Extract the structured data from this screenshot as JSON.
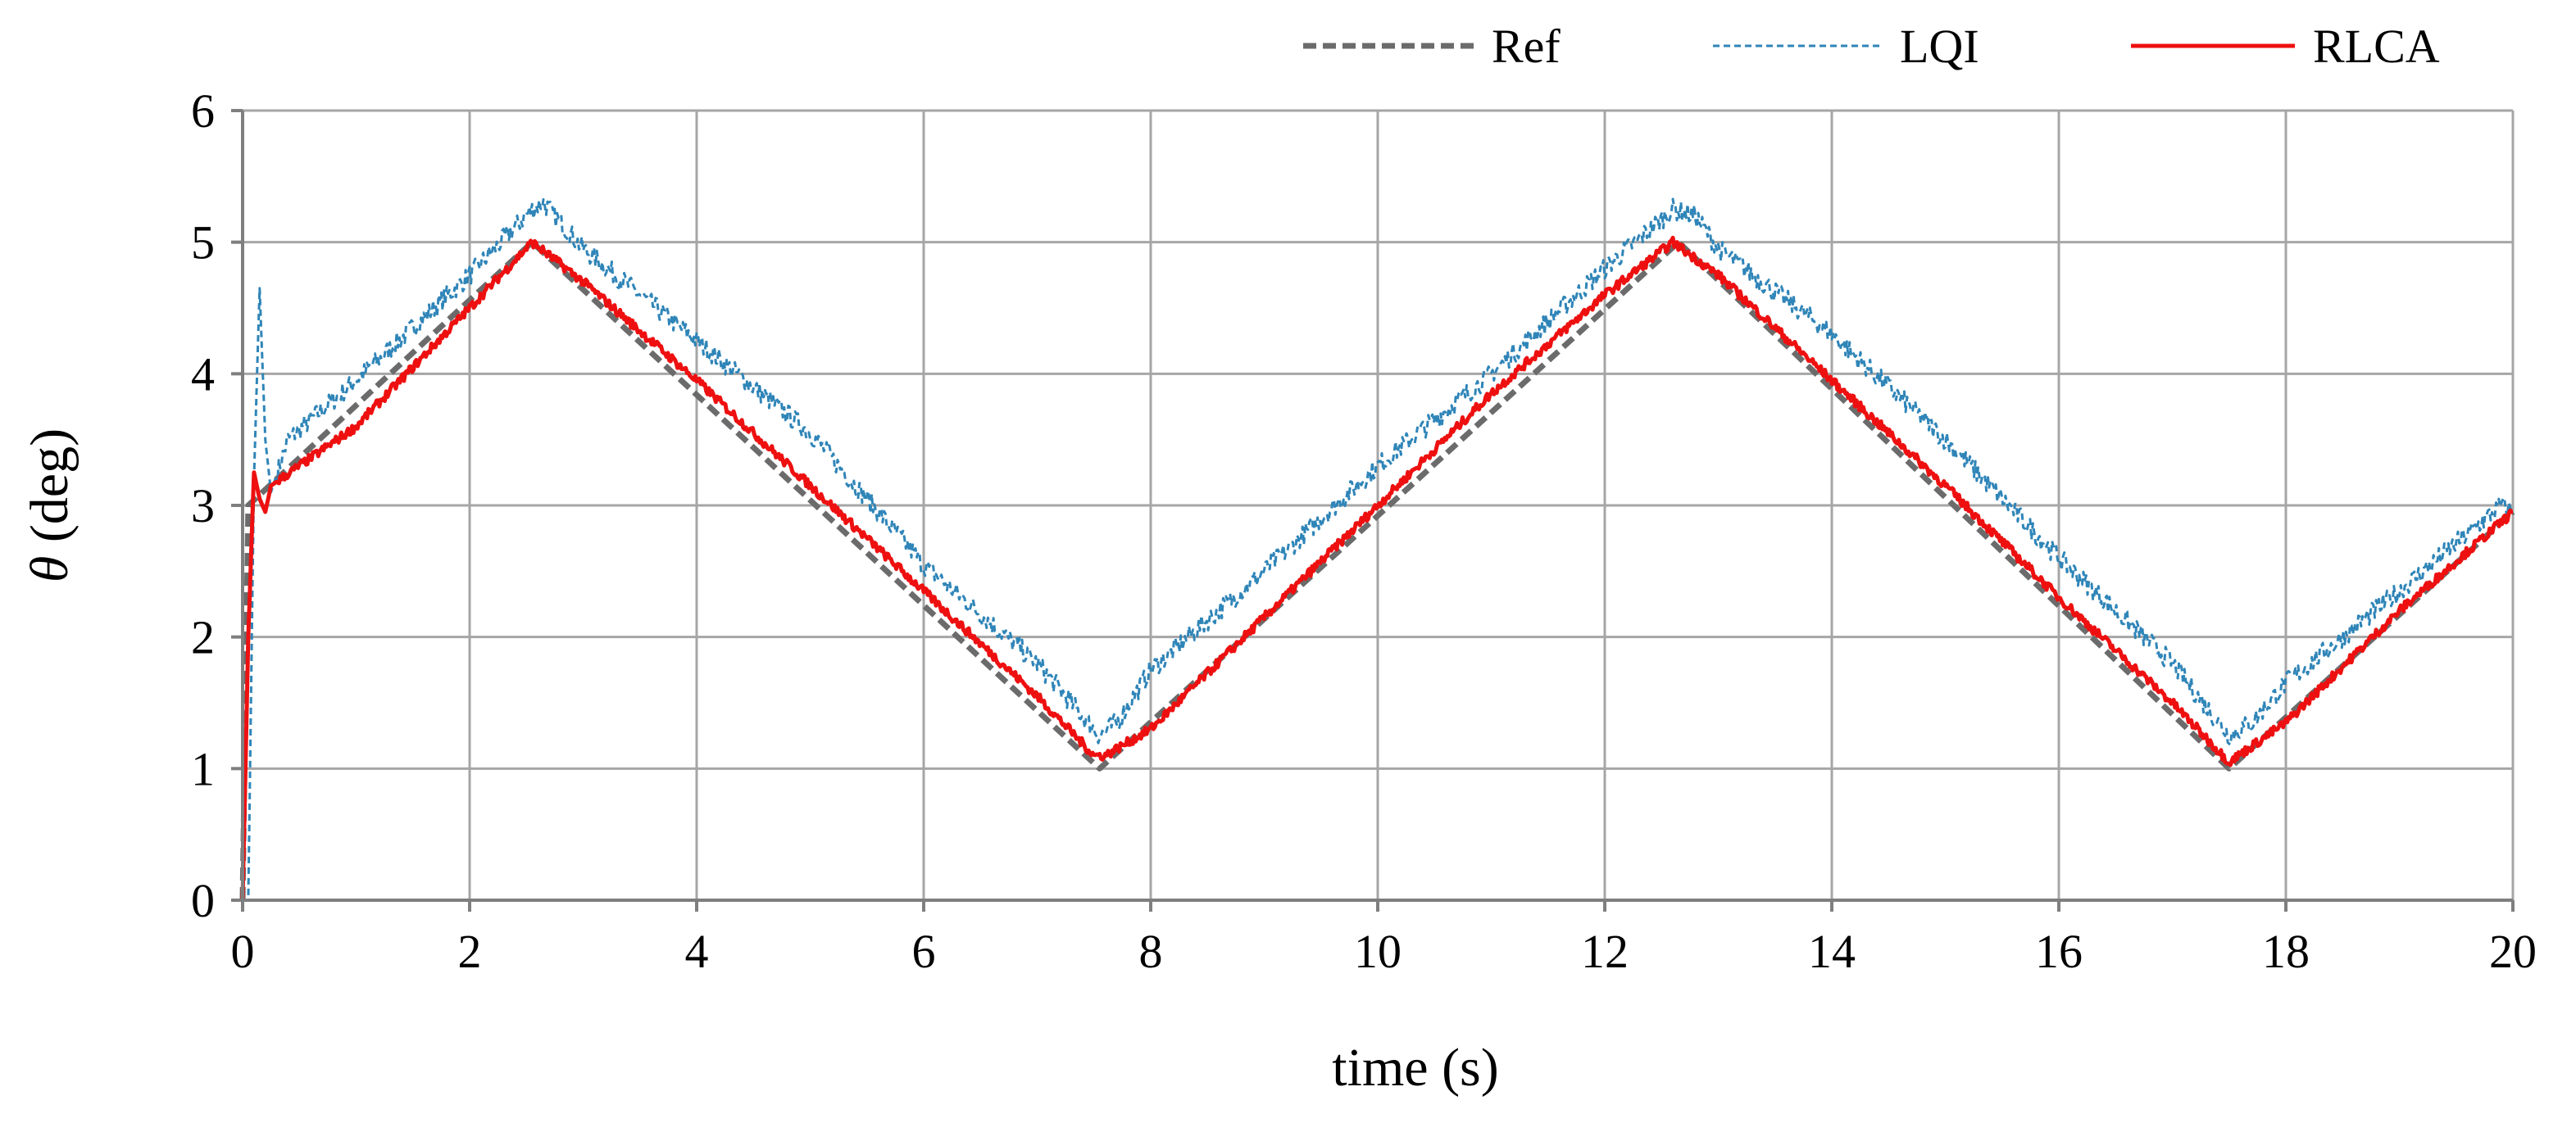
{
  "chart_data": {
    "type": "line",
    "title": "",
    "xlabel": "time (s)",
    "ylabel_symbol": "θ",
    "ylabel_unit": " (deg)",
    "xlim": [
      0,
      20
    ],
    "ylim": [
      0,
      6
    ],
    "xticks": [
      0,
      2,
      4,
      6,
      8,
      10,
      12,
      14,
      16,
      18,
      20
    ],
    "yticks": [
      0,
      1,
      2,
      3,
      4,
      5,
      6
    ],
    "grid": true,
    "legend_position": "top-right",
    "series": [
      {
        "name": "Ref",
        "color": "#6b6b6b",
        "style": "dashed",
        "x": [
          0,
          0.05,
          2.55,
          7.55,
          12.65,
          17.5,
          20
        ],
        "y": [
          0,
          3.0,
          5.0,
          1.0,
          5.0,
          1.0,
          2.95
        ]
      },
      {
        "name": "LQI",
        "color": "#2f85b8",
        "style": "dotted",
        "x": [
          0,
          0.05,
          0.1,
          0.15,
          0.2,
          0.25,
          0.4,
          1.0,
          1.5,
          2.0,
          2.55,
          2.65,
          3.0,
          4.0,
          5.0,
          6.0,
          7.0,
          7.55,
          7.7,
          8.0,
          9.0,
          10.0,
          11.0,
          12.0,
          12.6,
          12.8,
          13.0,
          14.0,
          15.0,
          16.0,
          17.0,
          17.5,
          17.7,
          18.0,
          19.0,
          19.9,
          20.0
        ],
        "y": [
          0,
          0.0,
          3.2,
          4.65,
          3.5,
          3.1,
          3.5,
          3.95,
          4.35,
          4.75,
          5.25,
          5.3,
          4.95,
          4.25,
          3.55,
          2.55,
          1.8,
          1.25,
          1.35,
          1.75,
          2.5,
          3.3,
          4.0,
          4.8,
          5.25,
          5.2,
          4.95,
          4.3,
          3.5,
          2.6,
          1.8,
          1.25,
          1.35,
          1.65,
          2.35,
          3.0,
          2.95
        ]
      },
      {
        "name": "RLCA",
        "color": "#ee1010",
        "style": "solid",
        "x": [
          0,
          0.05,
          0.1,
          0.15,
          0.2,
          0.25,
          0.5,
          1.0,
          2.0,
          2.55,
          3.0,
          4.0,
          5.0,
          6.0,
          7.0,
          7.5,
          7.6,
          8.0,
          9.0,
          10.0,
          11.0,
          12.0,
          12.6,
          13.0,
          14.0,
          15.0,
          16.0,
          17.0,
          17.5,
          18.0,
          19.0,
          20.0
        ],
        "y": [
          0,
          2.0,
          3.25,
          3.05,
          2.95,
          3.15,
          3.3,
          3.6,
          4.5,
          5.0,
          4.7,
          3.95,
          3.15,
          2.35,
          1.55,
          1.1,
          1.1,
          1.3,
          2.15,
          3.0,
          3.85,
          4.6,
          5.0,
          4.75,
          3.95,
          3.15,
          2.3,
          1.5,
          1.05,
          1.35,
          2.2,
          2.95
        ]
      }
    ]
  }
}
